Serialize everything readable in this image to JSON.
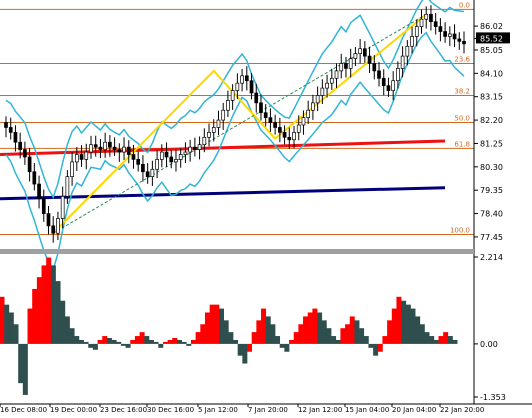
{
  "chart_data": [
    {
      "type": "candlestick",
      "description_panel": "price",
      "ylim": [
        77.0,
        87.0
      ],
      "y_ticks": [
        {
          "value": 86.02,
          "label": "86.02"
        },
        {
          "value": 85.52,
          "label": "85.52",
          "highlight": true
        },
        {
          "value": 85.05,
          "label": "85.05"
        },
        {
          "value": 84.1,
          "label": "84.10"
        },
        {
          "value": 83.15,
          "label": "83.15"
        },
        {
          "value": 82.2,
          "label": "82.20"
        },
        {
          "value": 81.25,
          "label": "81.25"
        },
        {
          "value": 80.3,
          "label": "80.30"
        },
        {
          "value": 79.35,
          "label": "79.35"
        },
        {
          "value": 78.4,
          "label": "78.40"
        },
        {
          "value": 77.45,
          "label": "77.45"
        }
      ],
      "fib_levels": [
        {
          "label": "0.0",
          "value": 86.7
        },
        {
          "label": "23.6",
          "value": 84.5
        },
        {
          "label": "38.2",
          "value": 83.2
        },
        {
          "label": "50.0",
          "value": 82.1
        },
        {
          "label": "61.8",
          "value": 81.05
        },
        {
          "label": "100.0",
          "value": 77.55
        }
      ],
      "close_series": [
        81.9,
        81.7,
        81.3,
        81.0,
        80.7,
        80.1,
        79.6,
        79.0,
        78.4,
        77.9,
        77.6,
        78.2,
        79.1,
        79.9,
        80.5,
        80.8,
        80.6,
        80.9,
        81.2,
        81.1,
        81.0,
        81.3,
        81.1,
        81.0,
        80.9,
        81.1,
        80.8,
        80.6,
        80.4,
        80.1,
        79.9,
        80.2,
        80.6,
        80.9,
        80.7,
        80.5,
        80.6,
        80.8,
        80.9,
        81.1,
        81.0,
        81.2,
        81.5,
        81.7,
        81.9,
        82.2,
        82.6,
        83.0,
        83.4,
        83.7,
        84.0,
        83.8,
        83.3,
        82.9,
        82.5,
        82.3,
        82.1,
        81.9,
        81.7,
        81.5,
        81.4,
        81.7,
        82.0,
        82.3,
        82.6,
        82.9,
        83.2,
        83.5,
        83.7,
        83.9,
        84.2,
        84.5,
        84.3,
        84.7,
        84.9,
        85.1,
        84.8,
        84.5,
        84.2,
        83.9,
        83.6,
        83.4,
        83.8,
        84.3,
        84.8,
        85.2,
        85.6,
        86.0,
        86.3,
        86.5,
        86.2,
        86.0,
        85.8,
        85.6,
        85.7,
        85.5,
        85.4,
        85.3
      ],
      "moving_averages": [
        {
          "name": "MA (red)",
          "color": "#ee1111",
          "start": 80.8,
          "end": 81.35
        },
        {
          "name": "MA (navy)",
          "color": "#00007a",
          "start": 79.0,
          "end": 79.45
        }
      ],
      "x_tick_labels": [
        "16 Dec 08:00",
        "19 Dec 00:00",
        "23 Dec 16:00",
        "30 Dec 16:00",
        "5 Jan 12:00",
        "7 Jan 20:00",
        "12 Jan 12:00",
        "15 Jan 04:00",
        "20 Jan 04:00",
        "22 Jan 20:00"
      ]
    },
    {
      "type": "histogram",
      "description_panel": "oscillator",
      "ylim": [
        -1.353,
        2.214
      ],
      "y_ticks": [
        {
          "value": 2.214,
          "label": "2.214"
        },
        {
          "value": 0.0,
          "label": "0.00"
        },
        {
          "value": -1.353,
          "label": "-1.353"
        }
      ],
      "values": [
        1.2,
        1.0,
        0.8,
        0.5,
        -1.0,
        -1.3,
        0.9,
        1.4,
        1.7,
        2.0,
        2.2,
        2.0,
        1.6,
        1.1,
        0.7,
        0.4,
        0.2,
        0.1,
        0.05,
        -0.1,
        -0.15,
        0.1,
        0.2,
        0.15,
        0.1,
        0.05,
        -0.05,
        -0.1,
        0.1,
        0.2,
        0.3,
        0.2,
        0.1,
        0.05,
        -0.1,
        0.05,
        0.1,
        0.15,
        0.1,
        0.05,
        -0.05,
        0.1,
        0.3,
        0.5,
        0.8,
        1.0,
        1.0,
        0.9,
        0.6,
        0.3,
        0.1,
        -0.3,
        -0.5,
        -0.2,
        0.3,
        0.6,
        0.9,
        0.7,
        0.5,
        0.2,
        -0.1,
        -0.2,
        0.1,
        0.3,
        0.5,
        0.7,
        0.8,
        0.9,
        0.8,
        0.6,
        0.4,
        0.2,
        0.1,
        0.4,
        0.5,
        0.7,
        0.6,
        0.4,
        0.2,
        -0.1,
        -0.3,
        -0.2,
        0.2,
        0.6,
        0.9,
        1.2,
        1.1,
        1.0,
        0.9,
        0.7,
        0.5,
        0.3,
        0.2,
        0.1,
        0.2,
        0.3,
        0.2,
        0.1
      ],
      "colors": {
        "rising": "#ff0000",
        "falling": "#2f4f4f"
      }
    }
  ]
}
